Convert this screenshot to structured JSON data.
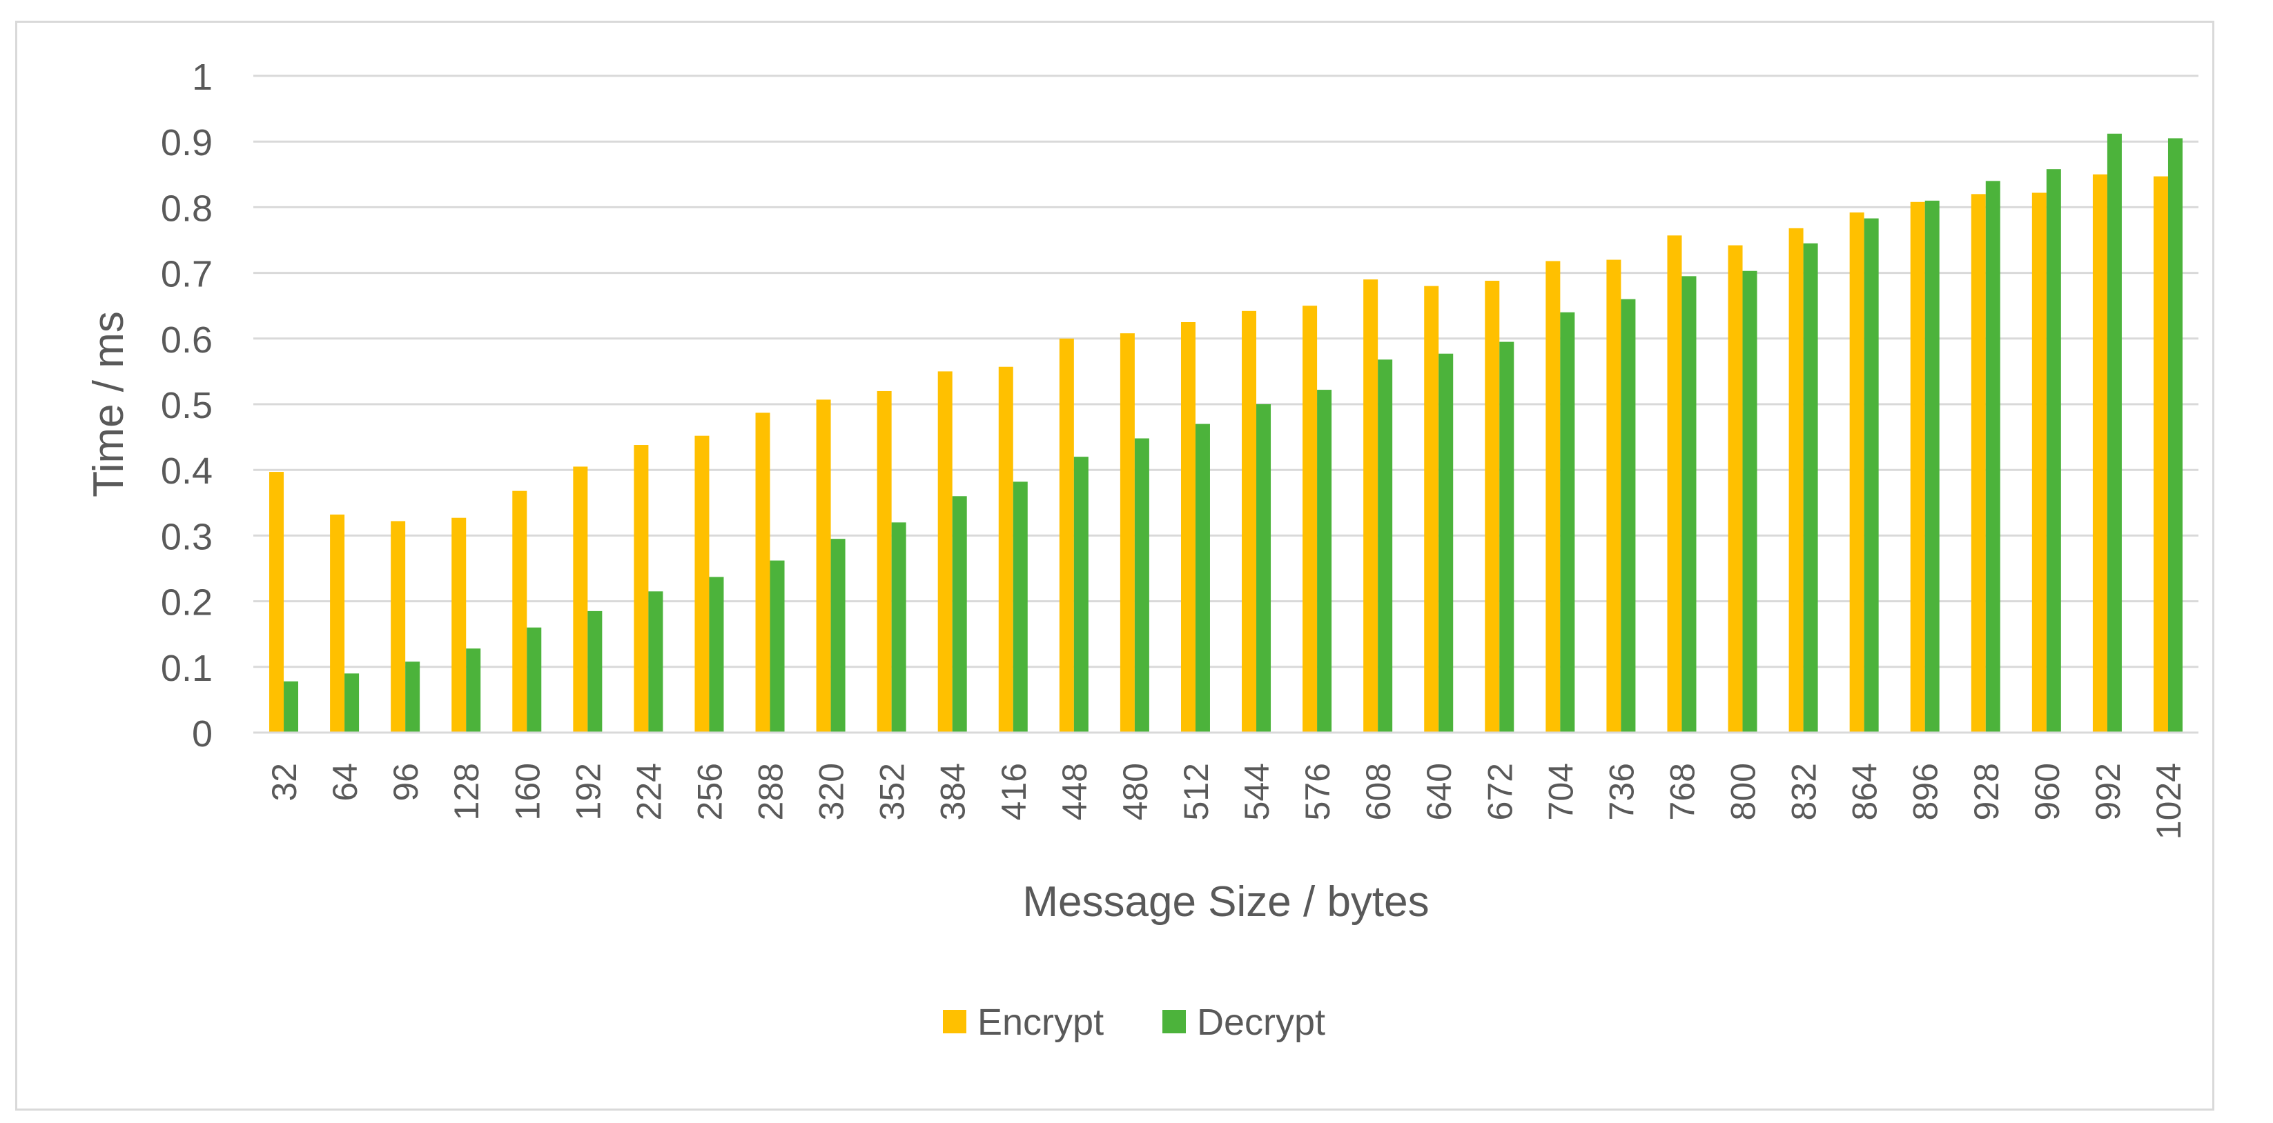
{
  "chart_data": {
    "type": "bar",
    "title": "",
    "xlabel": "Message Size / bytes",
    "ylabel": "Time / ms",
    "ylim": [
      0,
      1
    ],
    "yticks": [
      "0",
      "0.1",
      "0.2",
      "0.3",
      "0.4",
      "0.5",
      "0.6",
      "0.7",
      "0.8",
      "0.9",
      "1"
    ],
    "grid": "horizontal",
    "legend_position": "bottom",
    "categories": [
      "32",
      "64",
      "96",
      "128",
      "160",
      "192",
      "224",
      "256",
      "288",
      "320",
      "352",
      "384",
      "416",
      "448",
      "480",
      "512",
      "544",
      "576",
      "608",
      "640",
      "672",
      "704",
      "736",
      "768",
      "800",
      "832",
      "864",
      "896",
      "928",
      "960",
      "992",
      "1024"
    ],
    "series": [
      {
        "name": "Encrypt",
        "color": "#FFC000",
        "values": [
          0.397,
          0.332,
          0.322,
          0.327,
          0.368,
          0.405,
          0.438,
          0.452,
          0.487,
          0.507,
          0.52,
          0.55,
          0.557,
          0.6,
          0.608,
          0.625,
          0.642,
          0.65,
          0.69,
          0.68,
          0.688,
          0.718,
          0.72,
          0.757,
          0.742,
          0.768,
          0.792,
          0.808,
          0.82,
          0.822,
          0.85,
          0.847
        ]
      },
      {
        "name": "Decrypt",
        "color": "#4CB33B",
        "values": [
          0.078,
          0.09,
          0.108,
          0.128,
          0.16,
          0.185,
          0.215,
          0.237,
          0.262,
          0.295,
          0.32,
          0.36,
          0.382,
          0.42,
          0.448,
          0.47,
          0.5,
          0.522,
          0.568,
          0.577,
          0.595,
          0.64,
          0.66,
          0.695,
          0.703,
          0.745,
          0.783,
          0.81,
          0.84,
          0.858,
          0.912,
          0.905
        ]
      }
    ]
  }
}
